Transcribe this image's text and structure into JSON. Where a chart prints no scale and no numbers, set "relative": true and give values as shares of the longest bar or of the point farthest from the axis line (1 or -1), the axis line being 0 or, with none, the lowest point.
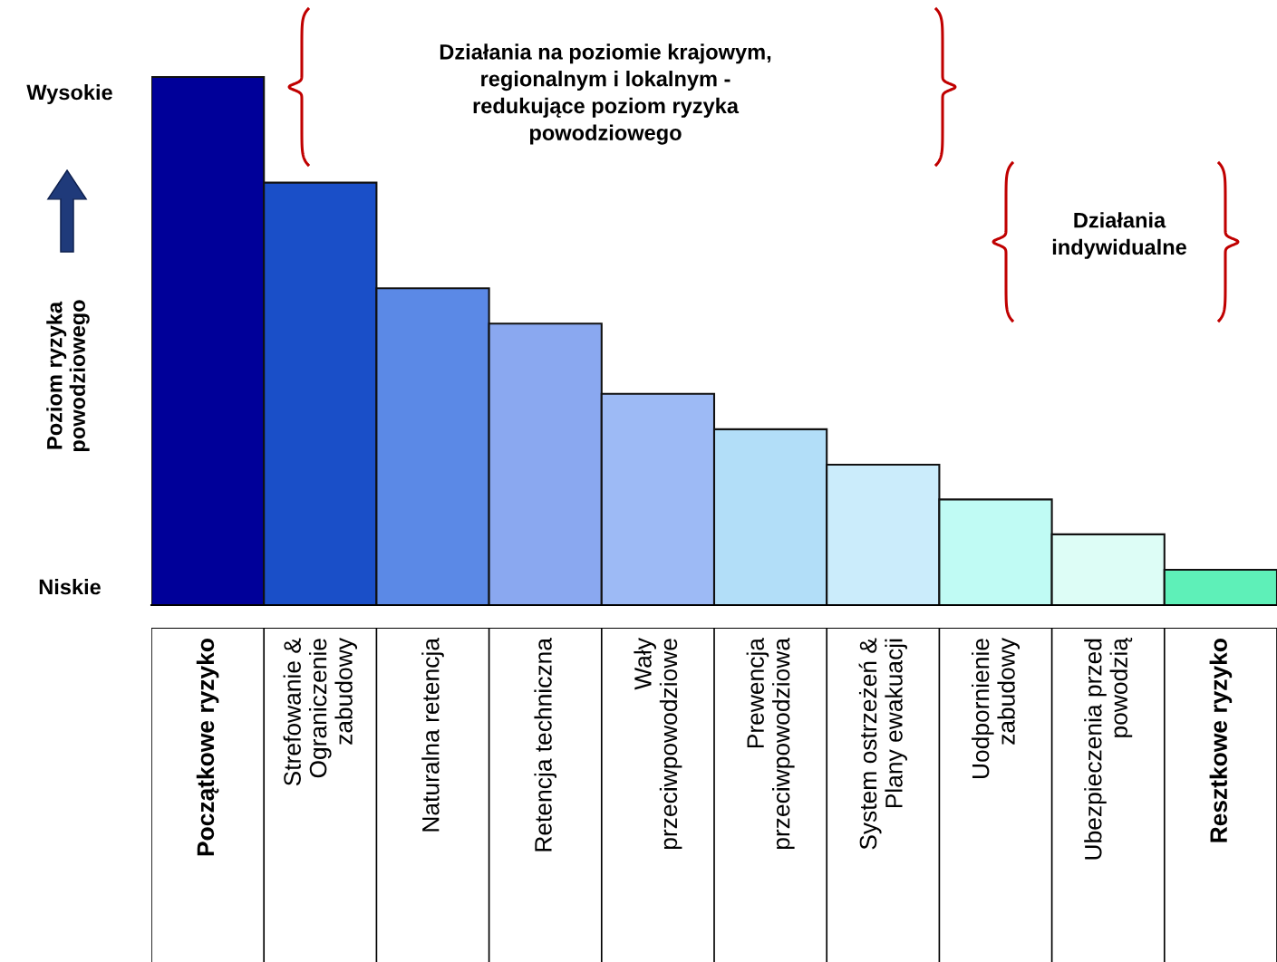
{
  "chart_data": {
    "type": "bar",
    "relative": true,
    "ylabel": "Poziom ryzyka\npowodziowego",
    "categories": [
      "Początkowe ryzyko",
      "Strefowanie &\nOgraniczenie\nzabudowy",
      "Naturalna retencja",
      "Retencja techniczna",
      "Wały\nprzeciwpowodziowe",
      "Prewencja\nprzeciwpowodziowa",
      "System ostrzeżeń &\nPlany ewakuacji",
      "Uodpornienie\nzabudowy",
      "Ubezpieczenia przed\npowodzią",
      "Resztkowe ryzyko"
    ],
    "values": [
      1,
      0.8,
      0.6,
      0.533,
      0.4,
      0.333,
      0.266,
      0.2,
      0.134,
      0.067
    ],
    "colors": [
      "#000099",
      "#1a4fc8",
      "#5b89e6",
      "#8aa8f0",
      "#9dbaf5",
      "#b2def8",
      "#cbecfb",
      "#c0fbf4",
      "#ddfdf6",
      "#5ef0b8"
    ],
    "annotations": [
      "Działania na poziomie krajowym,\nregionalnym i lokalnym -\nredukujące poziom ryzyka\npowodziowego",
      "Działania\nindywidualne",
      "Wysokie",
      "Niskie"
    ]
  }
}
